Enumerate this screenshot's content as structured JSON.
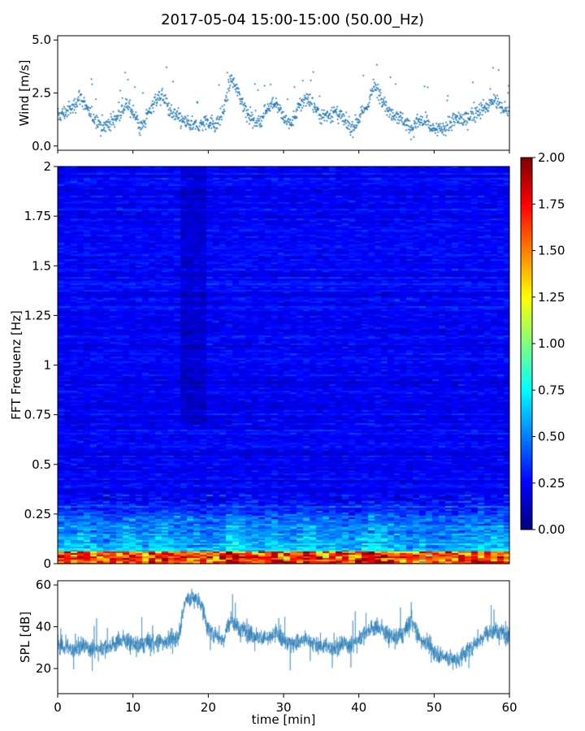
{
  "title": "2017-05-04 15:00-15:00 (50.00_Hz)",
  "chart_data": [
    {
      "type": "scatter",
      "name": "wind",
      "ylabel": "Wind [m/s]",
      "xlim": [
        0,
        60
      ],
      "ylim": [
        -0.2,
        5.2
      ],
      "yticks": [
        0.0,
        2.5,
        5.0
      ],
      "ytick_labels": [
        "0.0",
        "2.5",
        "5.0"
      ],
      "x": [
        0,
        1,
        2,
        3,
        4,
        5,
        6,
        7,
        8,
        9,
        10,
        11,
        12,
        13,
        14,
        15,
        16,
        17,
        18,
        19,
        20,
        21,
        22,
        23,
        24,
        25,
        26,
        27,
        28,
        29,
        30,
        31,
        32,
        33,
        34,
        35,
        36,
        37,
        38,
        39,
        40,
        41,
        42,
        43,
        44,
        45,
        46,
        47,
        48,
        49,
        50,
        51,
        52,
        53,
        54,
        55,
        56,
        57,
        58,
        59,
        60
      ],
      "values": [
        1.4,
        1.6,
        1.8,
        2.4,
        1.6,
        1.3,
        0.9,
        1.1,
        1.4,
        1.9,
        1.7,
        0.8,
        1.5,
        2.2,
        2.4,
        1.6,
        1.3,
        1.1,
        0.9,
        1.0,
        1.2,
        1.0,
        1.6,
        3.2,
        2.5,
        1.7,
        1.2,
        1.2,
        1.9,
        2.1,
        1.3,
        1.0,
        1.8,
        2.3,
        1.9,
        1.4,
        1.5,
        1.6,
        1.2,
        0.8,
        1.3,
        1.8,
        2.8,
        2.4,
        1.6,
        1.5,
        1.2,
        0.8,
        1.2,
        1.1,
        0.7,
        0.8,
        1.0,
        1.3,
        1.2,
        1.5,
        1.7,
        1.8,
        2.2,
        1.8,
        1.6
      ],
      "color": "#1f77b4"
    },
    {
      "type": "heatmap",
      "name": "spectrogram",
      "ylabel": "FFT Frequenz [Hz]",
      "xlim": [
        0,
        60
      ],
      "ylim": [
        0,
        2
      ],
      "yticks": [
        0,
        0.25,
        0.5,
        0.75,
        1,
        1.25,
        1.5,
        1.75,
        2
      ],
      "ytick_labels": [
        "0",
        "0.25",
        "0.5",
        "0.75",
        "1",
        "1.25",
        "1.5",
        "1.75",
        "2"
      ],
      "colormap": "jet",
      "colorbar": {
        "range": [
          0.0,
          2.0
        ],
        "ticks": [
          0.0,
          0.25,
          0.5,
          0.75,
          1.0,
          1.25,
          1.5,
          1.75,
          2.0
        ],
        "tick_labels": [
          "0.00",
          "0.25",
          "0.50",
          "0.75",
          "1.00",
          "1.25",
          "1.50",
          "1.75",
          "2.00"
        ]
      }
    },
    {
      "type": "line",
      "name": "spl",
      "ylabel": "SPL [dB]",
      "xlabel": "time [min]",
      "xlim": [
        0,
        60
      ],
      "ylim": [
        8,
        62
      ],
      "yticks": [
        20,
        40,
        60
      ],
      "ytick_labels": [
        "20",
        "40",
        "60"
      ],
      "xticks": [
        0,
        10,
        20,
        30,
        40,
        50,
        60
      ],
      "xtick_labels": [
        "0",
        "10",
        "20",
        "30",
        "40",
        "50",
        "60"
      ],
      "x": [
        0,
        1,
        2,
        3,
        4,
        5,
        6,
        7,
        8,
        9,
        10,
        11,
        12,
        13,
        14,
        15,
        16,
        17,
        18,
        19,
        20,
        21,
        22,
        23,
        24,
        25,
        26,
        27,
        28,
        29,
        30,
        31,
        32,
        33,
        34,
        35,
        36,
        37,
        38,
        39,
        40,
        41,
        42,
        43,
        44,
        45,
        46,
        47,
        48,
        49,
        50,
        51,
        52,
        53,
        54,
        55,
        56,
        57,
        58,
        59,
        60
      ],
      "values": [
        32,
        30,
        29,
        31,
        30,
        29,
        30,
        31,
        33,
        34,
        32,
        31,
        33,
        32,
        33,
        34,
        35,
        53,
        54,
        52,
        38,
        36,
        34,
        44,
        39,
        38,
        36,
        35,
        34,
        37,
        33,
        32,
        33,
        34,
        32,
        31,
        30,
        30,
        32,
        31,
        34,
        38,
        40,
        39,
        36,
        35,
        37,
        44,
        34,
        33,
        28,
        26,
        25,
        24,
        27,
        30,
        34,
        37,
        38,
        37,
        36
      ],
      "color": "#1f77b4"
    }
  ]
}
